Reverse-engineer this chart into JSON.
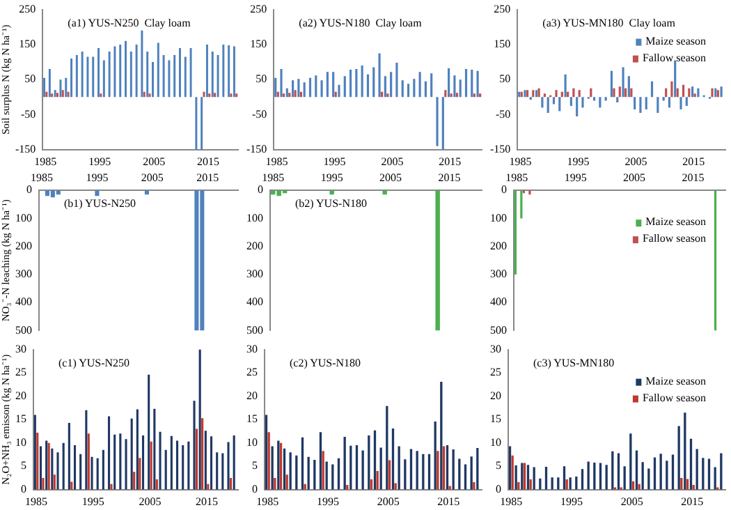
{
  "chart_data": [
    {
      "type": "bar",
      "title": "(a1) YUS-N250  Clay loam",
      "ylabel": "Soil surplus N (kg N ha⁻¹)",
      "categories": [
        "1985",
        null,
        null,
        null,
        null,
        null,
        null,
        null,
        null,
        null,
        "1995",
        null,
        null,
        null,
        null,
        null,
        null,
        null,
        null,
        null,
        "2005",
        null,
        null,
        null,
        null,
        null,
        null,
        null,
        null,
        null,
        "2015",
        null,
        null,
        null,
        null,
        null
      ],
      "ylim": [
        -150,
        250
      ],
      "yticks": [
        -150,
        -50,
        50,
        150,
        250
      ],
      "legend": false,
      "series": [
        {
          "color": "#4f81bd",
          "values": [
            55,
            80,
            20,
            50,
            55,
            110,
            120,
            130,
            115,
            115,
            140,
            105,
            130,
            145,
            150,
            160,
            130,
            150,
            190,
            130,
            100,
            155,
            120,
            105,
            120,
            140,
            115,
            140,
            -150,
            -150,
            150,
            130,
            120,
            150,
            148,
            145
          ]
        },
        {
          "color": "#c0504d",
          "values": [
            15,
            10,
            12,
            20,
            15,
            0,
            0,
            0,
            0,
            0,
            10,
            0,
            0,
            0,
            0,
            0,
            0,
            0,
            15,
            10,
            0,
            0,
            0,
            0,
            0,
            0,
            0,
            0,
            0,
            15,
            10,
            12,
            0,
            0,
            10,
            10
          ]
        }
      ]
    },
    {
      "type": "bar",
      "title": "(a2) YUS-N180  Clay loam",
      "categories": [
        "1985",
        null,
        null,
        null,
        null,
        null,
        null,
        null,
        null,
        null,
        "1995",
        null,
        null,
        null,
        null,
        null,
        null,
        null,
        null,
        null,
        "2005",
        null,
        null,
        null,
        null,
        null,
        null,
        null,
        null,
        null,
        "2015",
        null,
        null,
        null,
        null,
        null
      ],
      "ylim": [
        -150,
        250
      ],
      "yticks": [
        -150,
        -50,
        50,
        150,
        250
      ],
      "legend": false,
      "series": [
        {
          "color": "#4f81bd",
          "values": [
            55,
            80,
            25,
            48,
            52,
            42,
            55,
            62,
            48,
            72,
            72,
            35,
            60,
            78,
            80,
            90,
            65,
            85,
            125,
            60,
            72,
            98,
            48,
            38,
            52,
            72,
            45,
            68,
            -140,
            -150,
            82,
            62,
            50,
            80,
            78,
            75
          ]
        },
        {
          "color": "#c0504d",
          "values": [
            15,
            10,
            12,
            20,
            15,
            0,
            0,
            0,
            0,
            0,
            15,
            0,
            0,
            0,
            0,
            0,
            0,
            0,
            15,
            10,
            0,
            0,
            0,
            0,
            0,
            0,
            0,
            0,
            0,
            20,
            10,
            12,
            0,
            0,
            10,
            10
          ]
        }
      ]
    },
    {
      "type": "bar",
      "title": "(a3) YUS-MN180  Clay loam",
      "categories": [
        "1985",
        null,
        null,
        null,
        null,
        null,
        null,
        null,
        null,
        null,
        "1995",
        null,
        null,
        null,
        null,
        null,
        null,
        null,
        null,
        null,
        "2005",
        null,
        null,
        null,
        null,
        null,
        null,
        null,
        null,
        null,
        "2015",
        null,
        null,
        null,
        null,
        null
      ],
      "ylim": [
        -150,
        250
      ],
      "yticks": [
        -150,
        -50,
        50,
        150,
        250
      ],
      "legend": "top right",
      "series": [
        {
          "name": "Maize season",
          "color": "#4f81bd",
          "values": [
            15,
            20,
            -8,
            20,
            -30,
            -45,
            -20,
            -40,
            65,
            -25,
            -55,
            -30,
            -5,
            -10,
            -30,
            -10,
            75,
            -15,
            85,
            60,
            -35,
            -45,
            -35,
            45,
            -45,
            -10,
            -30,
            105,
            -35,
            -25,
            30,
            25,
            5,
            -5,
            25,
            30
          ]
        },
        {
          "name": "Fallow season",
          "color": "#c0504d",
          "values": [
            15,
            20,
            20,
            25,
            10,
            5,
            20,
            15,
            15,
            25,
            20,
            0,
            25,
            0,
            0,
            0,
            25,
            30,
            25,
            25,
            0,
            0,
            0,
            0,
            0,
            25,
            45,
            25,
            35,
            25,
            10,
            0,
            0,
            25,
            20,
            0
          ]
        }
      ]
    },
    {
      "type": "bar",
      "title": "(b1) YUS-N250",
      "ylabel": "NO₃⁻-N leaching (kg N ha⁻¹)",
      "categories": [
        "1985",
        null,
        null,
        null,
        null,
        null,
        null,
        null,
        null,
        null,
        "1995",
        null,
        null,
        null,
        null,
        null,
        null,
        null,
        null,
        null,
        "2005",
        null,
        null,
        null,
        null,
        null,
        null,
        null,
        null,
        null,
        "2015",
        null,
        null,
        null,
        null,
        null
      ],
      "ylim": [
        500,
        0
      ],
      "yticks": [
        0,
        100,
        200,
        300,
        400,
        500
      ],
      "legend": false,
      "series": [
        {
          "color": "#4f81bd",
          "values": [
            null,
            20,
            25,
            15,
            null,
            null,
            null,
            null,
            null,
            null,
            20,
            null,
            null,
            null,
            null,
            null,
            null,
            null,
            null,
            15,
            null,
            null,
            null,
            null,
            null,
            null,
            null,
            null,
            500,
            500,
            null,
            null,
            null,
            null,
            null,
            null
          ]
        }
      ]
    },
    {
      "type": "bar",
      "title": "(b2) YUS-N180",
      "categories": [
        "1985",
        null,
        null,
        null,
        null,
        null,
        null,
        null,
        null,
        null,
        "1995",
        null,
        null,
        null,
        null,
        null,
        null,
        null,
        null,
        null,
        "2005",
        null,
        null,
        null,
        null,
        null,
        null,
        null,
        null,
        null,
        "2015",
        null,
        null,
        null,
        null,
        null
      ],
      "ylim": [
        500,
        0
      ],
      "yticks": [
        0,
        100,
        200,
        300,
        400,
        500
      ],
      "legend": false,
      "series": [
        {
          "color": "#4caf50",
          "values": [
            15,
            20,
            10,
            null,
            null,
            null,
            null,
            null,
            null,
            null,
            15,
            null,
            null,
            null,
            null,
            null,
            null,
            null,
            null,
            15,
            null,
            null,
            null,
            null,
            null,
            null,
            null,
            null,
            500,
            null,
            null,
            null,
            null,
            null,
            null,
            null
          ]
        }
      ]
    },
    {
      "type": "bar",
      "categories": [
        "1985",
        null,
        null,
        null,
        null,
        null,
        null,
        null,
        null,
        null,
        "1995",
        null,
        null,
        null,
        null,
        null,
        null,
        null,
        null,
        null,
        "2005",
        null,
        null,
        null,
        null,
        null,
        null,
        null,
        null,
        null,
        "2015",
        null,
        null,
        null,
        null,
        null
      ],
      "ylim": [
        500,
        0
      ],
      "yticks": [
        0,
        100,
        200,
        300,
        400,
        500
      ],
      "legend": "top right",
      "series": [
        {
          "name": "Maize season",
          "color": "#4caf50",
          "values": [
            300,
            100,
            null,
            null,
            null,
            null,
            null,
            null,
            null,
            null,
            null,
            null,
            null,
            null,
            null,
            null,
            null,
            null,
            null,
            null,
            null,
            null,
            null,
            null,
            null,
            null,
            null,
            null,
            null,
            null,
            null,
            null,
            null,
            null,
            500,
            null
          ]
        },
        {
          "name": "Fallow season",
          "color": "#c0504d",
          "values": [
            null,
            10,
            15,
            null,
            null,
            null,
            null,
            null,
            null,
            null,
            null,
            null,
            null,
            null,
            null,
            null,
            null,
            null,
            null,
            null,
            null,
            null,
            null,
            null,
            null,
            null,
            null,
            null,
            null,
            null,
            null,
            null,
            null,
            null,
            null,
            null
          ]
        }
      ]
    },
    {
      "type": "bar",
      "title": "(c1) YUS-N250",
      "ylabel": "N₂O+NH₃ emisson (kg N ha⁻¹)",
      "categories": [
        "1985",
        null,
        null,
        null,
        null,
        null,
        null,
        null,
        null,
        null,
        "1995",
        null,
        null,
        null,
        null,
        null,
        null,
        null,
        null,
        null,
        "2005",
        null,
        null,
        null,
        null,
        null,
        null,
        null,
        null,
        null,
        "2015",
        null,
        null,
        null,
        null,
        null
      ],
      "ylim": [
        0,
        30
      ],
      "yticks": [
        0,
        5,
        10,
        15,
        20,
        25,
        30
      ],
      "legend": false,
      "series": [
        {
          "color": "#1f3864",
          "values": [
            16,
            9.3,
            10.5,
            8.8,
            8,
            10,
            14.3,
            9.5,
            7.6,
            17,
            7,
            6.7,
            8.5,
            15.7,
            11.8,
            12,
            10.8,
            15.2,
            17.2,
            11.6,
            24.6,
            17.3,
            12.4,
            8.5,
            11.5,
            10.5,
            9.5,
            10.3,
            19,
            30,
            12.6,
            11.4,
            8,
            7.8,
            10.2,
            11.6
          ]
        },
        {
          "color": "#c0392b",
          "values": [
            12.2,
            2.5,
            10,
            3.2,
            0,
            0,
            1.7,
            0,
            0,
            12,
            0,
            0,
            0,
            1.2,
            0,
            0,
            0,
            3.8,
            6.8,
            0,
            10.3,
            2.2,
            0,
            0,
            0,
            0,
            0,
            0,
            13,
            15.3,
            1.2,
            0,
            0,
            0,
            2.5,
            0
          ]
        }
      ]
    },
    {
      "type": "bar",
      "title": "(c2) YUS-N180",
      "categories": [
        "1985",
        null,
        null,
        null,
        null,
        null,
        null,
        null,
        null,
        null,
        "1995",
        null,
        null,
        null,
        null,
        null,
        null,
        null,
        null,
        null,
        "2005",
        null,
        null,
        null,
        null,
        null,
        null,
        null,
        null,
        null,
        "2015",
        null,
        null,
        null,
        null,
        null
      ],
      "ylim": [
        0,
        30
      ],
      "yticks": [
        0,
        5,
        10,
        15,
        20,
        25,
        30
      ],
      "legend": false,
      "series": [
        {
          "color": "#1f3864",
          "values": [
            16,
            9.3,
            10.5,
            8.8,
            8,
            7.3,
            11.2,
            7,
            6.4,
            12.3,
            6,
            5.4,
            6.7,
            11.3,
            9.4,
            9.5,
            8.4,
            11.6,
            12.7,
            9,
            17.9,
            13.1,
            9.3,
            6.5,
            8.7,
            8.3,
            7.6,
            7.6,
            14.6,
            23.1,
            9.5,
            8.6,
            6.6,
            5.4,
            7.1,
            8.9
          ]
        },
        {
          "color": "#c0392b",
          "values": [
            12.3,
            2.5,
            10,
            3.2,
            0,
            0,
            1.2,
            0,
            0,
            8.3,
            0,
            0,
            0,
            1,
            0,
            0,
            0,
            2.2,
            4,
            0,
            6.3,
            1.4,
            0,
            0,
            0,
            0,
            0,
            0,
            8.3,
            9.3,
            0.8,
            0,
            0,
            0,
            1.6,
            0
          ]
        }
      ]
    },
    {
      "type": "bar",
      "title": "(c3) YUS-MN180",
      "categories": [
        "1985",
        null,
        null,
        null,
        null,
        null,
        null,
        null,
        null,
        null,
        "1995",
        null,
        null,
        null,
        null,
        null,
        null,
        null,
        null,
        null,
        "2005",
        null,
        null,
        null,
        null,
        null,
        null,
        null,
        null,
        null,
        "2015",
        null,
        null,
        null,
        null,
        null
      ],
      "ylim": [
        0,
        30
      ],
      "yticks": [
        0,
        5,
        10,
        15,
        20,
        25,
        30
      ],
      "legend": "top right",
      "series": [
        {
          "name": "Maize season",
          "color": "#1f3864",
          "values": [
            9.3,
            5.2,
            5.7,
            5.3,
            4.8,
            2.4,
            4.9,
            2.6,
            2.6,
            5,
            2.6,
            2.8,
            4.4,
            6,
            5.8,
            5.7,
            5.3,
            8.2,
            7.8,
            5,
            12,
            8.4,
            5.9,
            4.5,
            6.9,
            7.7,
            6.2,
            7.5,
            13.6,
            16.5,
            10.9,
            8.7,
            6.8,
            6.6,
            4.8,
            7.8
          ]
        },
        {
          "name": "Fallow season",
          "color": "#c0392b",
          "values": [
            7.3,
            1.6,
            5.7,
            2.2,
            0,
            0,
            0,
            0,
            0,
            2.2,
            0,
            0,
            0,
            0,
            0,
            0,
            0,
            0.5,
            0.5,
            0,
            1.8,
            1.2,
            0,
            0,
            0,
            0,
            0,
            0,
            2.5,
            2.3,
            1,
            0,
            0,
            0,
            0.5,
            0
          ]
        }
      ]
    }
  ]
}
